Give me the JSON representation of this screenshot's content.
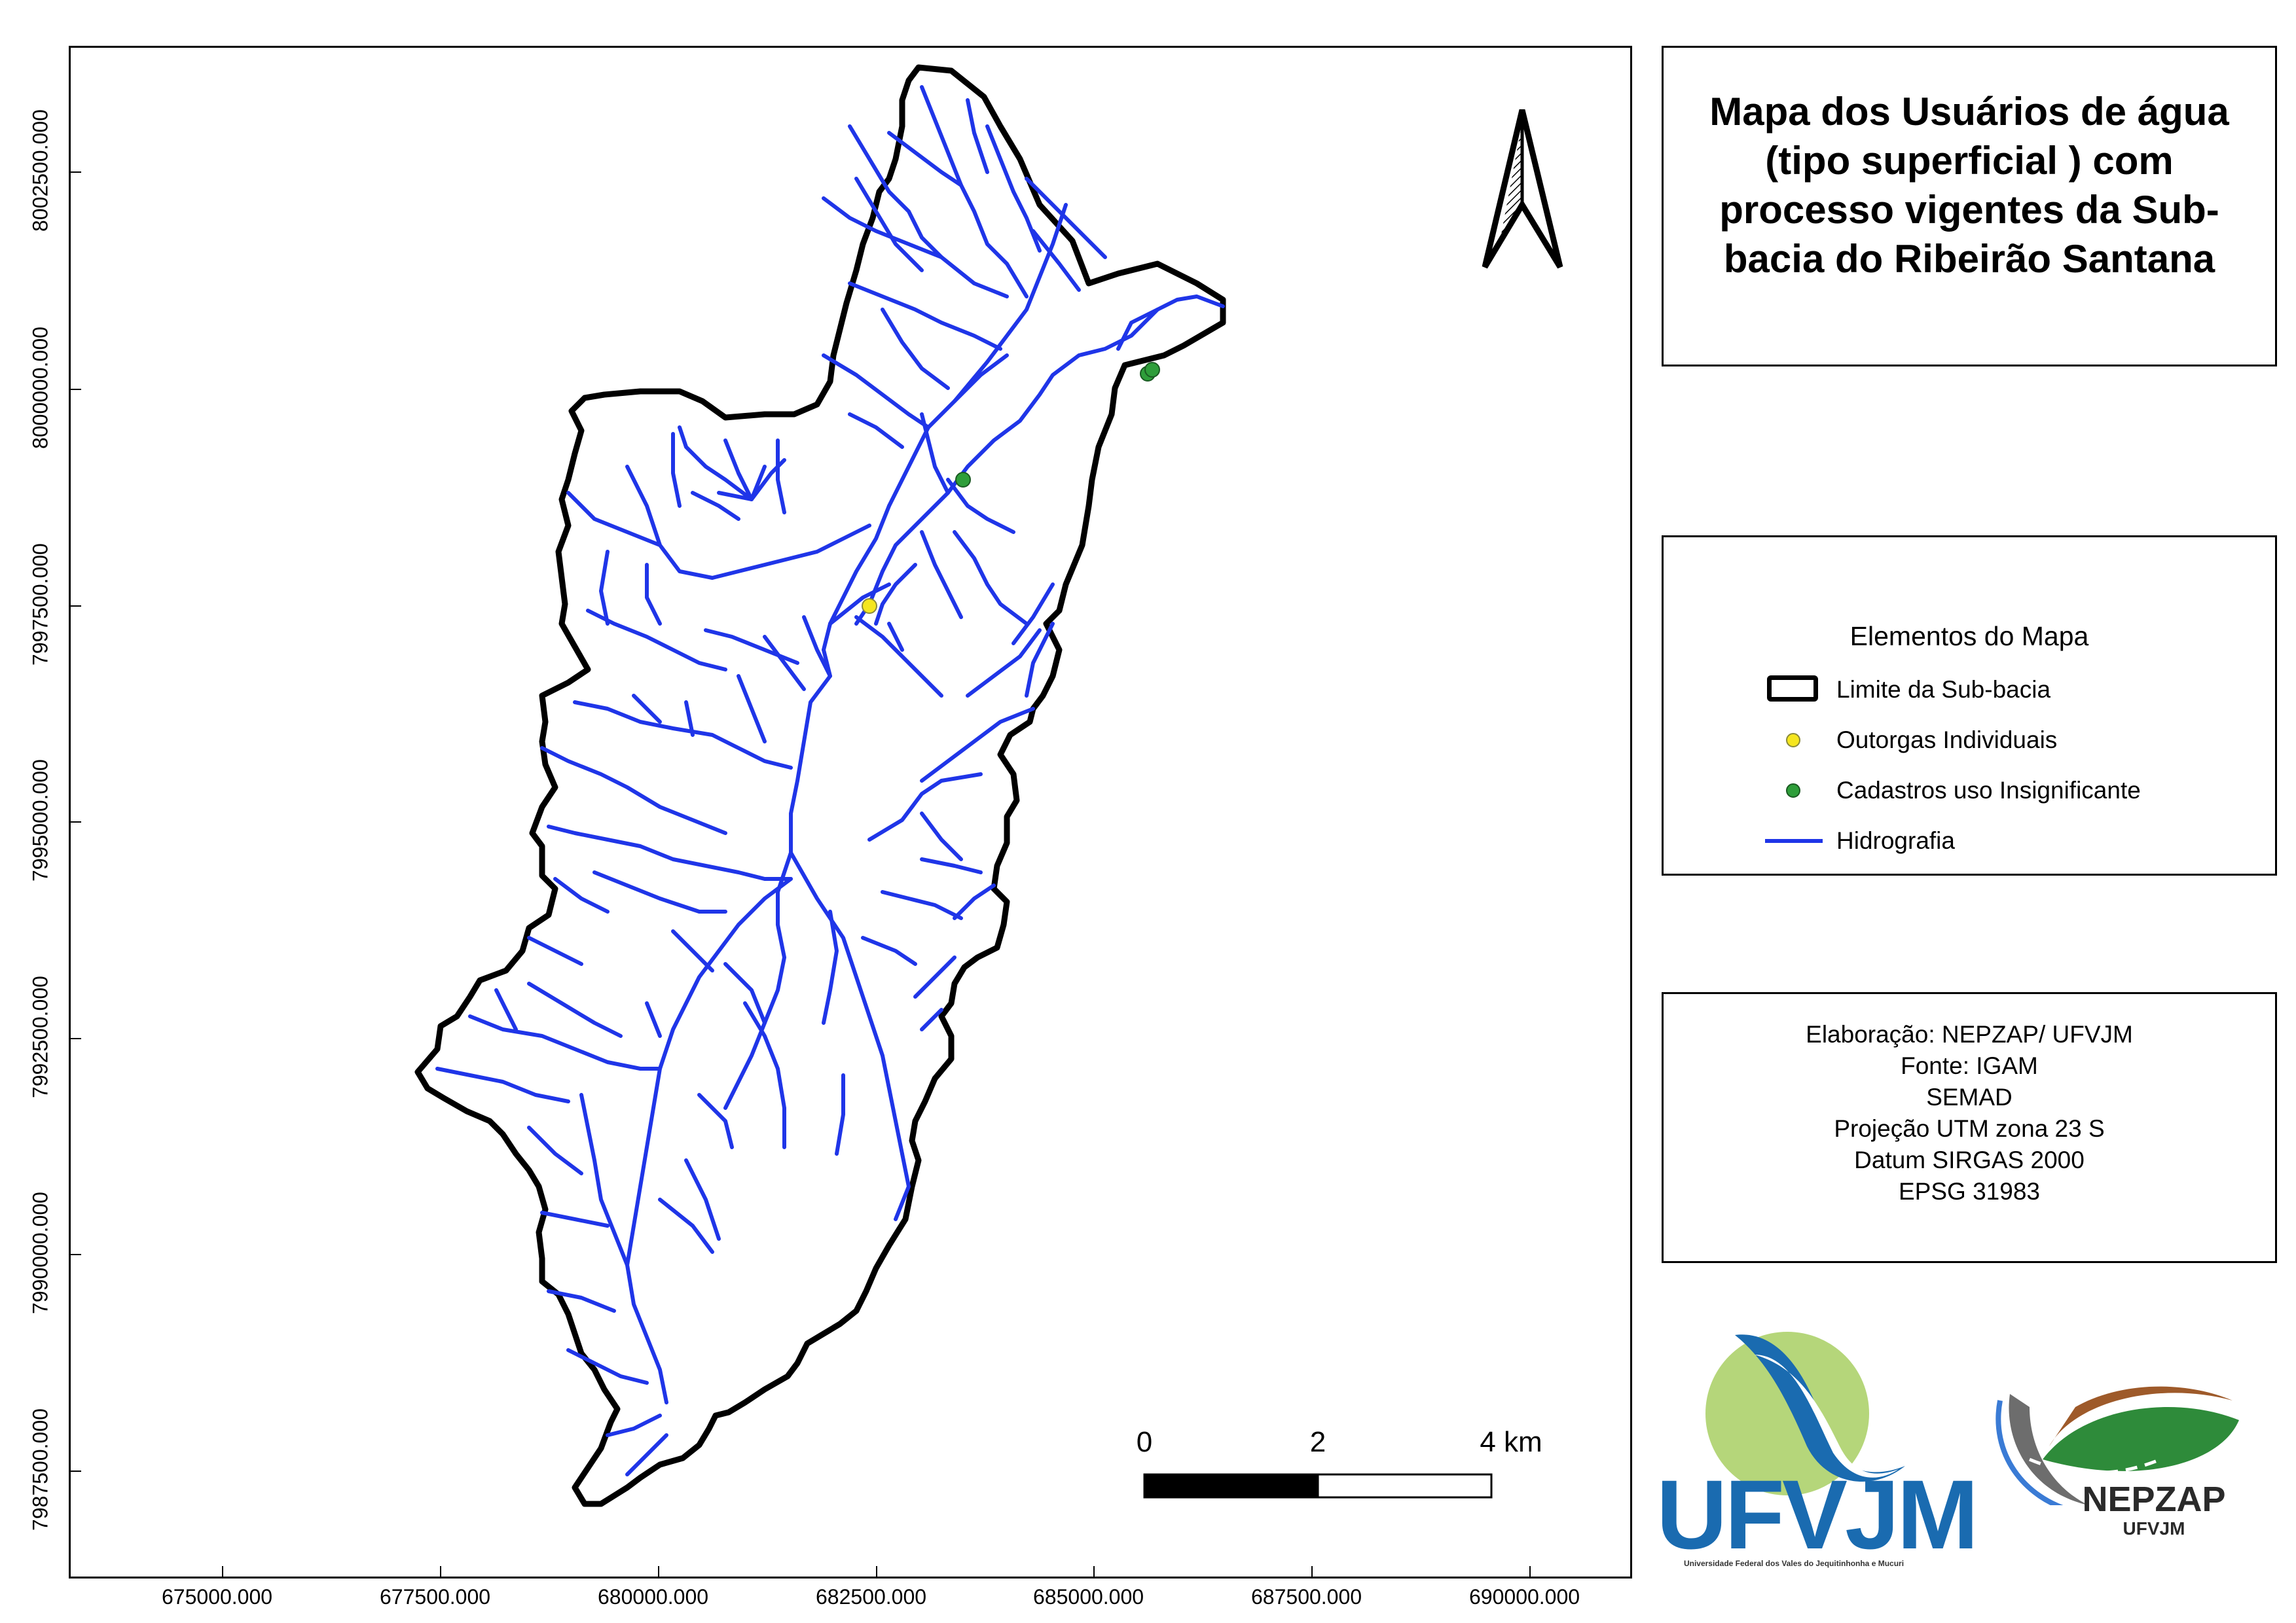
{
  "title": "Mapa dos Usuários de água (tipo superficial ) com processo vigentes da Sub-bacia do Ribeirão Santana",
  "legend": {
    "heading": "Elementos do Mapa",
    "items": [
      {
        "label": "Limite da Sub-bacia",
        "symbol": "polygon-outline",
        "color": "#000000"
      },
      {
        "label": "Outorgas Individuais",
        "symbol": "point",
        "color": "#f5e61f"
      },
      {
        "label": "Cadastros uso Insignificante",
        "symbol": "point",
        "color": "#2e9e3a"
      },
      {
        "label": "Hidrografia",
        "symbol": "line",
        "color": "#1f35e8"
      }
    ]
  },
  "credits": {
    "lines": [
      "Elaboração: NEPZAP/ UFVJM",
      "Fonte: IGAM",
      "SEMAD",
      "Projeção UTM zona 23 S",
      "Datum SIRGAS 2000",
      "EPSG 31983"
    ]
  },
  "axes": {
    "x_ticks": [
      "675000.000",
      "677500.000",
      "680000.000",
      "682500.000",
      "685000.000",
      "687500.000",
      "690000.000"
    ],
    "y_ticks": [
      "8002500.000",
      "8000000.000",
      "7997500.000",
      "7995000.000",
      "7992500.000",
      "7990000.000",
      "7987500.000"
    ]
  },
  "scale_bar": {
    "labels": [
      "0",
      "2",
      "4 km"
    ]
  },
  "points": {
    "outorgas": [
      {
        "e": 682500,
        "n": 7997500
      }
    ],
    "cadastros": [
      {
        "e": 683600,
        "n": 7998900
      },
      {
        "e": 685700,
        "n": 8000200
      }
    ]
  },
  "logos": {
    "ufvjm": {
      "text": "UFVJM",
      "subtitle": "Universidade Federal dos Vales do Jequitinhonha e Mucuri"
    },
    "nepzap": {
      "text": "NEPZAP",
      "subtitle": "UFVJM"
    }
  },
  "colors": {
    "boundary": "#000000",
    "river": "#1f35e8",
    "outorga": "#f5e61f",
    "cadastro": "#2e9e3a",
    "ufvjm_blue": "#1a6bb0",
    "ufvjm_green": "#b5d67a",
    "nepzap_green": "#2e8b3a"
  }
}
